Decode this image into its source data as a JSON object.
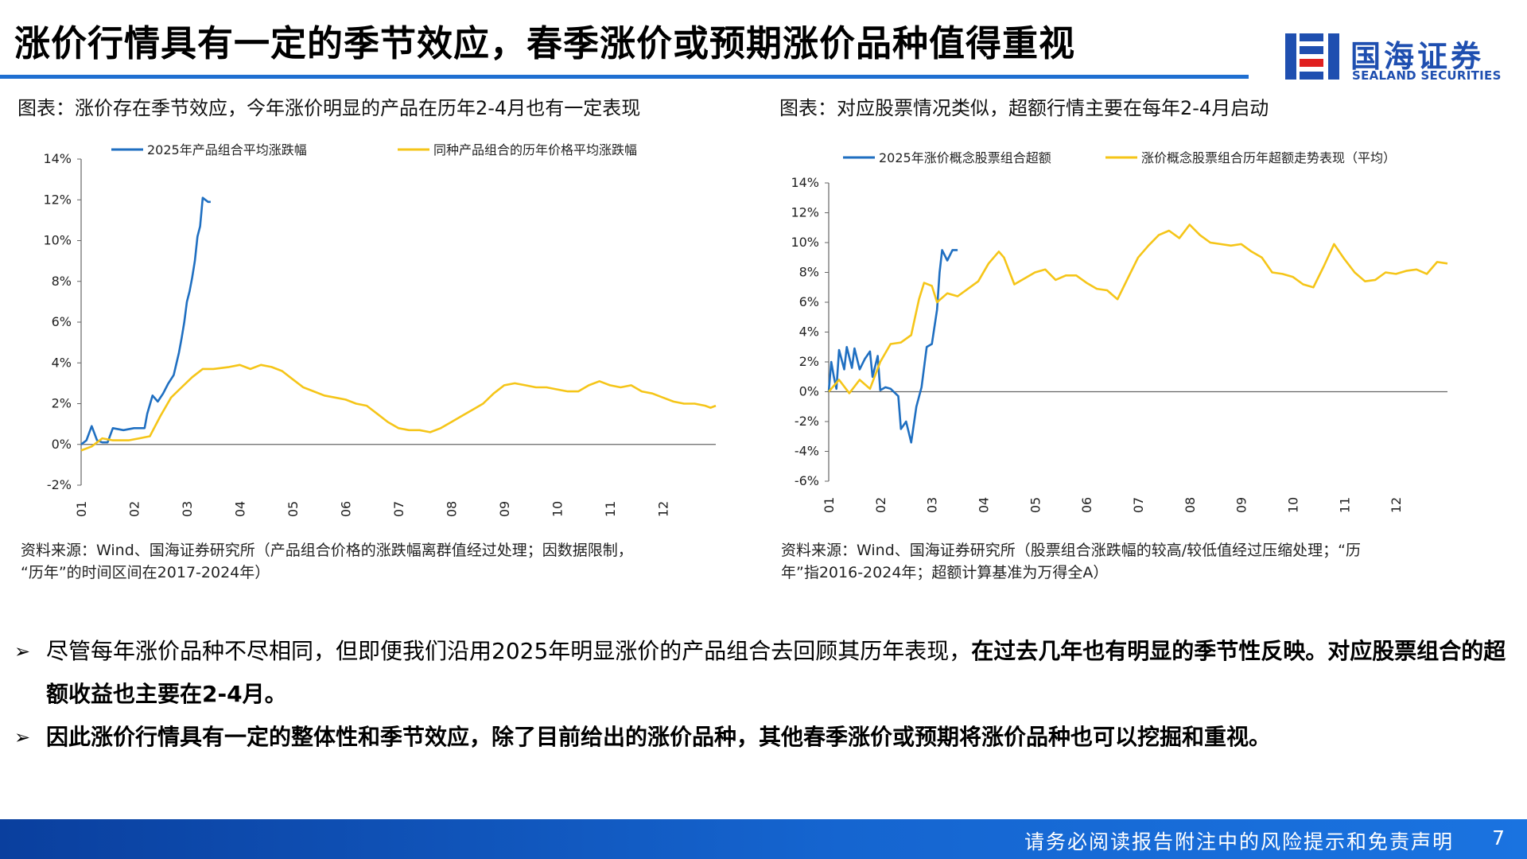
{
  "header": {
    "title": "涨价行情具有一定的季节效应，春季涨价或预期涨价品种值得重视",
    "logo_cn": "国海证券",
    "logo_en": "SEALAND SECURITIES"
  },
  "colors": {
    "blue_series": "#1f6fc1",
    "yellow_series": "#f5c518",
    "accent": "#1f6fd1"
  },
  "charts": [
    {
      "caption": "图表：涨价存在季节效应，今年涨价明显的产品在历年2-4月也有一定表现",
      "source_line1": "资料来源：Wind、国海证券研究所（产品组合价格的涨跌幅离群值经过处理；因数据限制，",
      "source_line2": "“历年”的时间区间在2017-2024年）"
    },
    {
      "caption": "图表：对应股票情况类似，超额行情主要在每年2-4月启动",
      "source_line1": "资料来源：Wind、国海证券研究所（股票组合涨跌幅的较高/较低值经过压缩处理；“历",
      "source_line2": "年”指2016-2024年；超额计算基准为万得全A）"
    }
  ],
  "chart_data": [
    {
      "type": "line",
      "x_ticks": [
        "01",
        "02",
        "03",
        "04",
        "05",
        "06",
        "07",
        "08",
        "09",
        "10",
        "11",
        "12"
      ],
      "y_ticks": [
        "14%",
        "12%",
        "10%",
        "8%",
        "6%",
        "4%",
        "2%",
        "0%",
        "-2%"
      ],
      "ylim": [
        -2,
        14
      ],
      "xlim": [
        1,
        13
      ],
      "grid": false,
      "legend": "top",
      "series": [
        {
          "name": "2025年产品组合平均涨跌幅",
          "color": "#1f6fc1",
          "points": [
            [
              1.0,
              0.0
            ],
            [
              1.1,
              0.2
            ],
            [
              1.2,
              0.9
            ],
            [
              1.3,
              0.2
            ],
            [
              1.4,
              0.1
            ],
            [
              1.5,
              0.1
            ],
            [
              1.6,
              0.8
            ],
            [
              1.8,
              0.7
            ],
            [
              2.0,
              0.8
            ],
            [
              2.2,
              0.8
            ],
            [
              2.25,
              1.5
            ],
            [
              2.35,
              2.4
            ],
            [
              2.45,
              2.1
            ],
            [
              2.55,
              2.5
            ],
            [
              2.65,
              3.0
            ],
            [
              2.75,
              3.4
            ],
            [
              2.85,
              4.5
            ],
            [
              2.9,
              5.2
            ],
            [
              2.95,
              6.0
            ],
            [
              3.0,
              7.0
            ],
            [
              3.05,
              7.5
            ],
            [
              3.1,
              8.2
            ],
            [
              3.15,
              9.0
            ],
            [
              3.2,
              10.2
            ],
            [
              3.25,
              10.7
            ],
            [
              3.3,
              12.1
            ],
            [
              3.35,
              12.0
            ],
            [
              3.4,
              11.9
            ],
            [
              3.45,
              11.9
            ]
          ]
        },
        {
          "name": "同种产品组合的历年价格平均涨跌幅",
          "color": "#f5c518",
          "points": [
            [
              1.0,
              -0.3
            ],
            [
              1.2,
              -0.1
            ],
            [
              1.4,
              0.3
            ],
            [
              1.6,
              0.2
            ],
            [
              1.9,
              0.2
            ],
            [
              2.1,
              0.3
            ],
            [
              2.3,
              0.4
            ],
            [
              2.5,
              1.4
            ],
            [
              2.7,
              2.3
            ],
            [
              2.9,
              2.8
            ],
            [
              3.1,
              3.3
            ],
            [
              3.3,
              3.7
            ],
            [
              3.5,
              3.7
            ],
            [
              3.8,
              3.8
            ],
            [
              4.0,
              3.9
            ],
            [
              4.2,
              3.7
            ],
            [
              4.4,
              3.9
            ],
            [
              4.6,
              3.8
            ],
            [
              4.8,
              3.6
            ],
            [
              5.0,
              3.2
            ],
            [
              5.2,
              2.8
            ],
            [
              5.4,
              2.6
            ],
            [
              5.6,
              2.4
            ],
            [
              5.8,
              2.3
            ],
            [
              6.0,
              2.2
            ],
            [
              6.2,
              2.0
            ],
            [
              6.4,
              1.9
            ],
            [
              6.6,
              1.5
            ],
            [
              6.8,
              1.1
            ],
            [
              7.0,
              0.8
            ],
            [
              7.2,
              0.7
            ],
            [
              7.4,
              0.7
            ],
            [
              7.6,
              0.6
            ],
            [
              7.8,
              0.8
            ],
            [
              8.0,
              1.1
            ],
            [
              8.2,
              1.4
            ],
            [
              8.4,
              1.7
            ],
            [
              8.6,
              2.0
            ],
            [
              8.8,
              2.5
            ],
            [
              9.0,
              2.9
            ],
            [
              9.2,
              3.0
            ],
            [
              9.4,
              2.9
            ],
            [
              9.6,
              2.8
            ],
            [
              9.8,
              2.8
            ],
            [
              10.0,
              2.7
            ],
            [
              10.2,
              2.6
            ],
            [
              10.4,
              2.6
            ],
            [
              10.6,
              2.9
            ],
            [
              10.8,
              3.1
            ],
            [
              11.0,
              2.9
            ],
            [
              11.2,
              2.8
            ],
            [
              11.4,
              2.9
            ],
            [
              11.6,
              2.6
            ],
            [
              11.8,
              2.5
            ],
            [
              12.0,
              2.3
            ],
            [
              12.2,
              2.1
            ],
            [
              12.4,
              2.0
            ],
            [
              12.6,
              2.0
            ],
            [
              12.8,
              1.9
            ],
            [
              12.9,
              1.8
            ],
            [
              13.0,
              1.9
            ]
          ]
        }
      ]
    },
    {
      "type": "line",
      "x_ticks": [
        "01",
        "02",
        "03",
        "04",
        "05",
        "06",
        "07",
        "08",
        "09",
        "10",
        "11",
        "12"
      ],
      "y_ticks": [
        "14%",
        "12%",
        "10%",
        "8%",
        "6%",
        "4%",
        "2%",
        "0%",
        "-2%",
        "-4%",
        "-6%"
      ],
      "ylim": [
        -6,
        14
      ],
      "xlim": [
        1,
        13
      ],
      "grid": false,
      "legend": "top",
      "series": [
        {
          "name": "2025年涨价概念股票组合超额",
          "color": "#1f6fc1",
          "points": [
            [
              1.0,
              0.0
            ],
            [
              1.05,
              2.0
            ],
            [
              1.1,
              1.0
            ],
            [
              1.15,
              0.2
            ],
            [
              1.2,
              2.8
            ],
            [
              1.3,
              1.5
            ],
            [
              1.35,
              3.0
            ],
            [
              1.45,
              1.6
            ],
            [
              1.5,
              2.9
            ],
            [
              1.6,
              1.5
            ],
            [
              1.7,
              2.2
            ],
            [
              1.8,
              2.7
            ],
            [
              1.85,
              1.0
            ],
            [
              1.95,
              2.4
            ],
            [
              2.0,
              0.1
            ],
            [
              2.1,
              0.3
            ],
            [
              2.2,
              0.2
            ],
            [
              2.35,
              -0.3
            ],
            [
              2.4,
              -2.5
            ],
            [
              2.5,
              -2.0
            ],
            [
              2.6,
              -3.4
            ],
            [
              2.7,
              -1.0
            ],
            [
              2.8,
              0.3
            ],
            [
              2.9,
              3.0
            ],
            [
              3.0,
              3.2
            ],
            [
              3.1,
              5.5
            ],
            [
              3.15,
              8.0
            ],
            [
              3.2,
              9.5
            ],
            [
              3.3,
              8.8
            ],
            [
              3.4,
              9.5
            ],
            [
              3.5,
              9.5
            ]
          ]
        },
        {
          "name": "涨价概念股票组合历年超额走势表现（平均）",
          "color": "#f5c518",
          "points": [
            [
              1.0,
              0.0
            ],
            [
              1.2,
              0.8
            ],
            [
              1.4,
              -0.1
            ],
            [
              1.6,
              0.8
            ],
            [
              1.8,
              0.2
            ],
            [
              2.0,
              2.0
            ],
            [
              2.2,
              3.2
            ],
            [
              2.4,
              3.3
            ],
            [
              2.6,
              3.8
            ],
            [
              2.75,
              6.2
            ],
            [
              2.85,
              7.3
            ],
            [
              3.0,
              7.1
            ],
            [
              3.1,
              6.0
            ],
            [
              3.3,
              6.6
            ],
            [
              3.5,
              6.4
            ],
            [
              3.7,
              6.9
            ],
            [
              3.9,
              7.4
            ],
            [
              4.1,
              8.6
            ],
            [
              4.3,
              9.4
            ],
            [
              4.4,
              9.0
            ],
            [
              4.6,
              7.2
            ],
            [
              4.8,
              7.6
            ],
            [
              5.0,
              8.0
            ],
            [
              5.2,
              8.2
            ],
            [
              5.4,
              7.5
            ],
            [
              5.6,
              7.8
            ],
            [
              5.8,
              7.8
            ],
            [
              6.0,
              7.3
            ],
            [
              6.2,
              6.9
            ],
            [
              6.4,
              6.8
            ],
            [
              6.6,
              6.2
            ],
            [
              6.8,
              7.6
            ],
            [
              7.0,
              9.0
            ],
            [
              7.2,
              9.8
            ],
            [
              7.4,
              10.5
            ],
            [
              7.6,
              10.8
            ],
            [
              7.8,
              10.3
            ],
            [
              8.0,
              11.2
            ],
            [
              8.2,
              10.5
            ],
            [
              8.4,
              10.0
            ],
            [
              8.6,
              9.9
            ],
            [
              8.8,
              9.8
            ],
            [
              9.0,
              9.9
            ],
            [
              9.2,
              9.4
            ],
            [
              9.4,
              9.0
            ],
            [
              9.6,
              8.0
            ],
            [
              9.8,
              7.9
            ],
            [
              10.0,
              7.7
            ],
            [
              10.2,
              7.2
            ],
            [
              10.4,
              7.0
            ],
            [
              10.6,
              8.4
            ],
            [
              10.8,
              9.9
            ],
            [
              11.0,
              8.9
            ],
            [
              11.2,
              8.0
            ],
            [
              11.4,
              7.4
            ],
            [
              11.6,
              7.5
            ],
            [
              11.8,
              8.0
            ],
            [
              12.0,
              7.9
            ],
            [
              12.2,
              8.1
            ],
            [
              12.4,
              8.2
            ],
            [
              12.6,
              7.9
            ],
            [
              12.8,
              8.7
            ],
            [
              13.0,
              8.6
            ]
          ]
        }
      ]
    }
  ],
  "bullets": [
    {
      "mark": "➢",
      "normal": "尽管每年涨价品种不尽相同，但即便我们沿用2025年明显涨价的产品组合去回顾其历年表现，",
      "bold": "在过去几年也有明显的季节性反映。对应股票组合的超额收益也主要在2-4月。"
    },
    {
      "mark": "➢",
      "normal": "",
      "bold": "因此涨价行情具有一定的整体性和季节效应，除了目前给出的涨价品种，其他春季涨价或预期将涨价品种也可以挖掘和重视。"
    }
  ],
  "footer": {
    "disclaimer": "请务必阅读报告附注中的风险提示和免责声明",
    "page": "7"
  }
}
